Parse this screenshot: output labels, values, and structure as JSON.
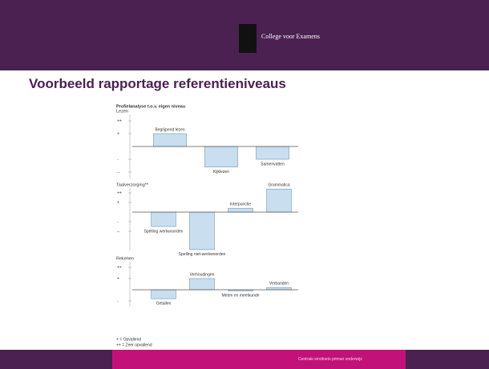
{
  "header": {
    "logo_text": "College voor Examens"
  },
  "title": "Voorbeeld rapportage referentieniveaus",
  "figure_heading": "Profielanalyse t.o.v. eigen niveau",
  "chart_data": [
    {
      "type": "bar",
      "title": "Lezen",
      "categories": [
        "Begrijpend lezen",
        "Kijklezen",
        "Samenvatten"
      ],
      "values": [
        1,
        -1.6,
        -1
      ],
      "color": "#c9dff0",
      "ylim": [
        -2.5,
        2.5
      ],
      "yticks": [
        {
          "value": 2,
          "label": "++"
        },
        {
          "value": 1,
          "label": "+"
        },
        {
          "value": -1,
          "label": "-"
        },
        {
          "value": -2,
          "label": "--"
        }
      ]
    },
    {
      "type": "bar",
      "title": "Taalverzorging**",
      "categories": [
        "Spelling werkwoorden",
        "Spelling niet-werkwoorden",
        "Interpunctie",
        "Grammatica"
      ],
      "values": [
        -1.5,
        -3.9,
        0.4,
        2.4
      ],
      "color": "#c9dff0",
      "ylim": [
        -4,
        2.5
      ],
      "yticks": [
        {
          "value": 2,
          "label": "++"
        },
        {
          "value": 1,
          "label": "+"
        },
        {
          "value": -1,
          "label": "-"
        },
        {
          "value": -2,
          "label": "--"
        }
      ]
    },
    {
      "type": "bar",
      "title": "Rekenen",
      "categories": [
        "Getallen",
        "Verhoudingen",
        "Meten en meetkunde",
        "Verbanden"
      ],
      "values": [
        -0.8,
        1,
        -0.1,
        0.2
      ],
      "color": "#c9dff0",
      "ylim": [
        -1.5,
        2.5
      ],
      "yticks": [
        {
          "value": 2,
          "label": "++"
        },
        {
          "value": 1,
          "label": "+"
        },
        {
          "value": -1,
          "label": "-"
        }
      ]
    }
  ],
  "legend": [
    "+ = Opvallend",
    "++ = Zeer opvallend"
  ],
  "footer": "Centrale eindtoets primair onderwijs"
}
